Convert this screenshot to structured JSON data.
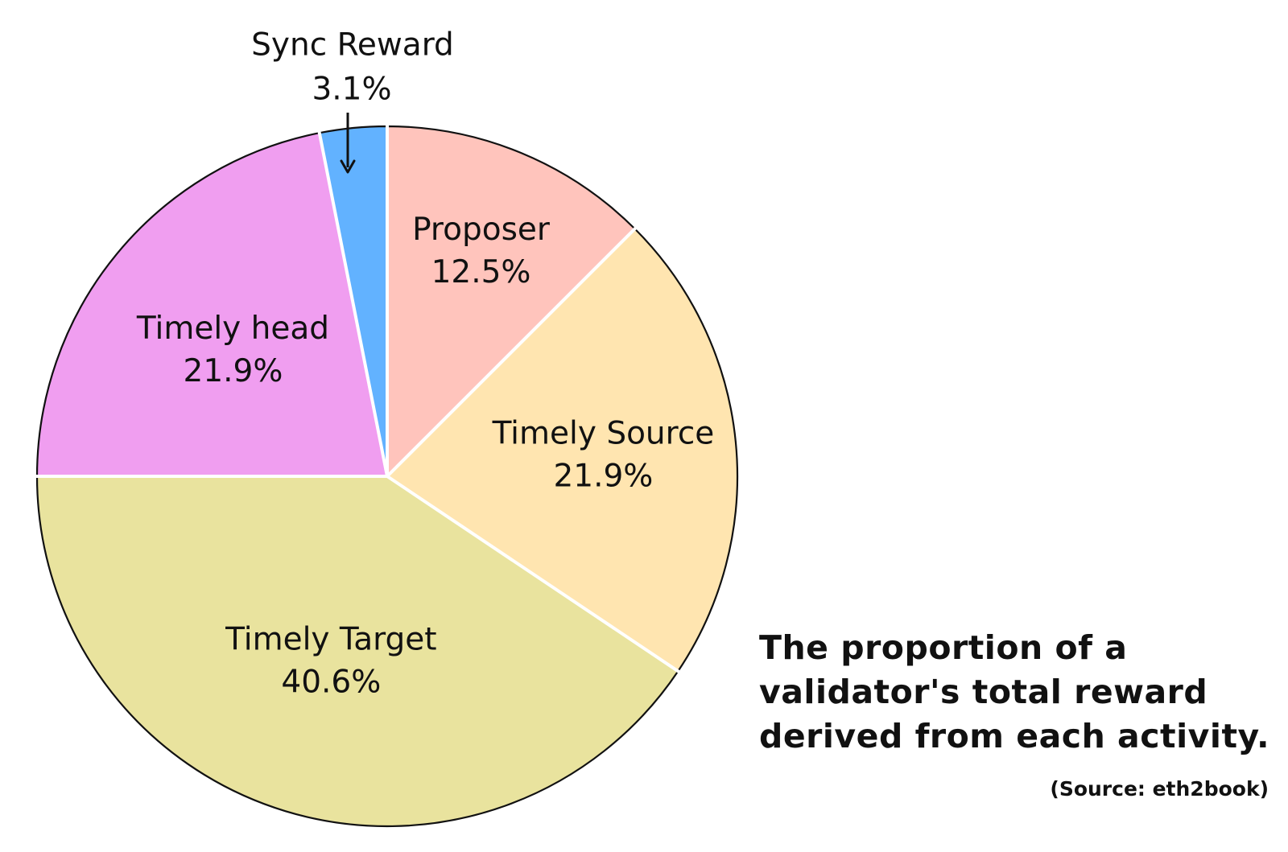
{
  "chart_data": {
    "type": "pie",
    "title": "",
    "slices": [
      {
        "label": "Proposer",
        "value": 12.5,
        "value_label": "12.5%",
        "color": "#FFC4BC"
      },
      {
        "label": "Timely Source",
        "value": 21.9,
        "value_label": "21.9%",
        "color": "#FFE5B0"
      },
      {
        "label": "Timely Target",
        "value": 40.6,
        "value_label": "40.6%",
        "color": "#E9E39E"
      },
      {
        "label": "Timely head",
        "value": 21.9,
        "value_label": "21.9%",
        "color": "#F09EF0"
      },
      {
        "label": "Sync Reward",
        "value": 3.1,
        "value_label": "3.1%",
        "color": "#62B2FF"
      }
    ],
    "unit": "%",
    "legend": "none",
    "annotations": [
      "Sync Reward label with arrow pointing to slice"
    ]
  },
  "caption": {
    "text": "The proportion of a\nvalidator's total reward\nderived from each activity."
  },
  "source_note": "(Source: eth2book)"
}
